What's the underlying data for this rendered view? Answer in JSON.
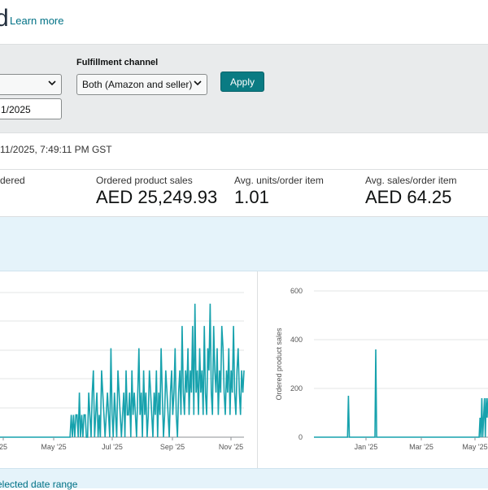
{
  "header": {
    "title_fragment": "d",
    "learn_more": "Learn more"
  },
  "filters": {
    "first_select_value": "",
    "date_value": "1/2025",
    "fulfillment_label": "Fulfillment channel",
    "fulfillment_value": "Both (Amazon and seller)",
    "apply_label": "Apply"
  },
  "timestamp": "11/2025, 7:49:11 PM GST",
  "metrics": [
    {
      "label": "dered",
      "value": ""
    },
    {
      "label": "Ordered product sales",
      "value": "AED 25,249.93"
    },
    {
      "label": "Avg. units/order item",
      "value": "1.01"
    },
    {
      "label": "Avg. sales/order item",
      "value": "AED 64.25"
    }
  ],
  "footer": {
    "link_text": "elected date range"
  },
  "colors": {
    "accent": "#0a7b83",
    "line": "#17a2ad",
    "link": "#007185"
  },
  "chart_data": [
    {
      "type": "line",
      "x_tick_labels": [
        "25",
        "May '25",
        "Jul '25",
        "Sep '25",
        "Nov '25"
      ],
      "y_tick_labels": [],
      "grid": true,
      "series": [
        {
          "values": [
            0,
            0,
            0,
            0,
            0,
            0,
            0,
            0,
            0,
            0,
            0,
            0,
            0,
            0,
            0,
            0,
            0,
            0,
            0,
            0,
            0,
            0,
            0,
            0,
            0,
            0,
            0,
            0,
            0,
            0,
            0,
            0,
            0,
            0,
            0,
            0,
            0,
            0,
            0,
            0,
            0,
            0,
            0,
            0,
            0,
            0,
            0,
            0,
            0,
            0,
            0,
            0,
            0,
            0,
            0,
            0,
            0,
            0,
            0,
            0,
            0,
            1,
            0,
            1,
            0,
            1,
            1,
            0,
            2,
            0,
            1,
            0,
            1,
            1,
            0,
            0,
            2,
            1,
            0,
            2,
            3,
            0,
            1,
            2,
            0,
            1,
            0,
            3,
            2,
            1,
            0,
            1,
            2,
            1,
            0,
            4,
            1,
            0,
            2,
            1,
            0,
            3,
            2,
            1,
            0,
            1,
            2,
            0,
            3,
            1,
            1,
            2,
            0,
            3,
            1,
            2,
            1,
            0,
            2,
            4,
            1,
            2,
            0,
            3,
            1,
            2,
            0,
            1,
            3,
            2,
            1,
            0,
            2,
            1,
            3,
            0,
            2,
            1,
            4,
            2,
            0,
            1,
            3,
            2,
            1,
            0,
            2,
            3,
            1,
            2,
            4,
            1,
            0,
            2,
            3,
            1,
            5,
            2,
            1,
            3,
            2,
            4,
            1,
            3,
            2,
            5,
            1,
            6,
            2,
            3,
            1,
            4,
            2,
            3,
            1,
            5,
            2,
            1,
            4,
            3,
            6,
            2,
            1,
            5,
            3,
            2,
            4,
            1,
            3,
            2,
            5,
            4,
            2,
            1,
            3,
            2,
            4,
            1,
            3,
            2,
            5,
            2,
            1,
            3,
            4,
            2,
            1,
            3,
            2,
            3
          ]
        }
      ]
    },
    {
      "type": "line",
      "ylabel": "Ordered product sales",
      "ylim": [
        0,
        600
      ],
      "y_ticks": [
        0,
        200,
        400,
        600
      ],
      "x_tick_labels": [
        "Jan '25",
        "Mar '25",
        "May '25"
      ],
      "grid": true,
      "series": [
        {
          "values": [
            0,
            0,
            0,
            0,
            0,
            0,
            0,
            0,
            0,
            0,
            0,
            0,
            0,
            0,
            0,
            0,
            0,
            0,
            0,
            0,
            0,
            0,
            0,
            0,
            0,
            0,
            0,
            0,
            0,
            0,
            0,
            0,
            0,
            0,
            0,
            0,
            0,
            0,
            0,
            170,
            0,
            0,
            0,
            0,
            0,
            0,
            0,
            0,
            0,
            0,
            0,
            0,
            0,
            0,
            0,
            0,
            0,
            0,
            0,
            0,
            0,
            0,
            0,
            0,
            0,
            0,
            0,
            0,
            0,
            0,
            360,
            0,
            0,
            0,
            0,
            0,
            0,
            0,
            0,
            0,
            0,
            0,
            0,
            0,
            0,
            0,
            0,
            0,
            0,
            0,
            0,
            0,
            0,
            0,
            0,
            0,
            0,
            0,
            0,
            0,
            0,
            0,
            0,
            0,
            0,
            0,
            0,
            0,
            0,
            0,
            0,
            0,
            0,
            0,
            0,
            0,
            0,
            0,
            0,
            0,
            0,
            0,
            0,
            0,
            0,
            0,
            0,
            0,
            0,
            0,
            0,
            0,
            0,
            0,
            0,
            0,
            0,
            0,
            0,
            0,
            0,
            0,
            0,
            0,
            0,
            0,
            0,
            0,
            0,
            0,
            0,
            0,
            0,
            0,
            0,
            0,
            0,
            0,
            0,
            0,
            0,
            0,
            0,
            0,
            0,
            0,
            0,
            0,
            0,
            0,
            0,
            0,
            0,
            0,
            0,
            0,
            0,
            0,
            0,
            0,
            0,
            0,
            0,
            0,
            0,
            0,
            0,
            0,
            80,
            0,
            160,
            0,
            80,
            160,
            0,
            160,
            80,
            160
          ]
        }
      ]
    }
  ]
}
